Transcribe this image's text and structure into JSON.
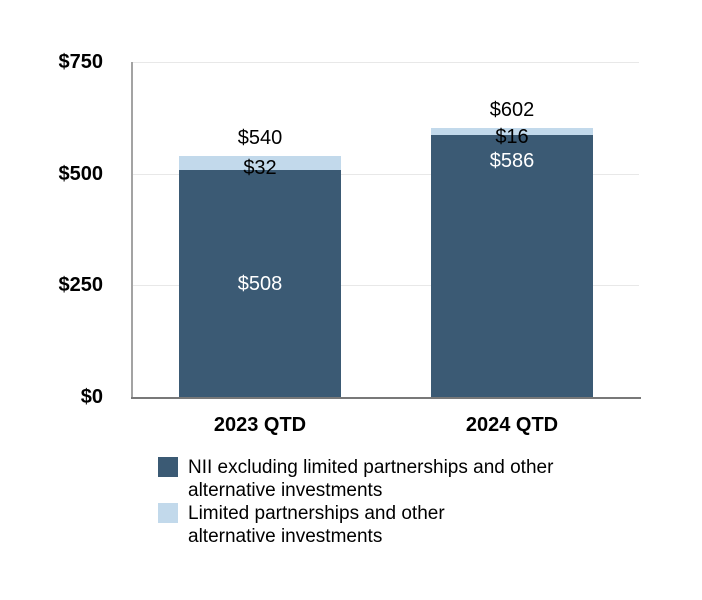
{
  "colors": {
    "background": "#ffffff",
    "dark_series": "#3b5a74",
    "light_series": "#c2d9eb",
    "gridline": "#e8e8e8",
    "y_axis_line": "#a3a3a3",
    "x_axis_line": "#787878",
    "label_on_dark": "#ffffff",
    "label_on_light": "#000000",
    "text": "#000000"
  },
  "chart_data": {
    "type": "bar",
    "stacked": true,
    "title": "",
    "xlabel": "",
    "ylabel": "",
    "categories": [
      "2023 QTD",
      "2024 QTD"
    ],
    "series": [
      {
        "name": "NII excluding limited partnerships and other alternative investments",
        "values": [
          508,
          586
        ],
        "labels": [
          "$508",
          "$586"
        ],
        "color": "#3b5a74",
        "label_color": "#ffffff",
        "label_placement": [
          "middle",
          "near-top"
        ]
      },
      {
        "name": "Limited partnerships and other alternative investments",
        "values": [
          32,
          16
        ],
        "labels": [
          "$32",
          "$16"
        ],
        "color": "#c2d9eb",
        "label_color": "#000000",
        "label_placement": [
          "middle",
          "middle"
        ]
      }
    ],
    "totals": [
      540,
      602
    ],
    "total_labels": [
      "$540",
      "$602"
    ],
    "ylim": [
      0,
      750
    ],
    "yticks": [
      {
        "value": 750,
        "label": "$750"
      },
      {
        "value": 500,
        "label": "$500"
      },
      {
        "value": 250,
        "label": "$250"
      },
      {
        "value": 0,
        "label": "$0"
      }
    ],
    "grid": true,
    "legend_position": "bottom-left",
    "legend": [
      {
        "color": "#3b5a74",
        "lines": [
          "NII excluding limited partnerships and other",
          "alternative investments"
        ]
      },
      {
        "color": "#c2d9eb",
        "lines": [
          "Limited partnerships and other",
          "alternative investments"
        ]
      }
    ]
  }
}
